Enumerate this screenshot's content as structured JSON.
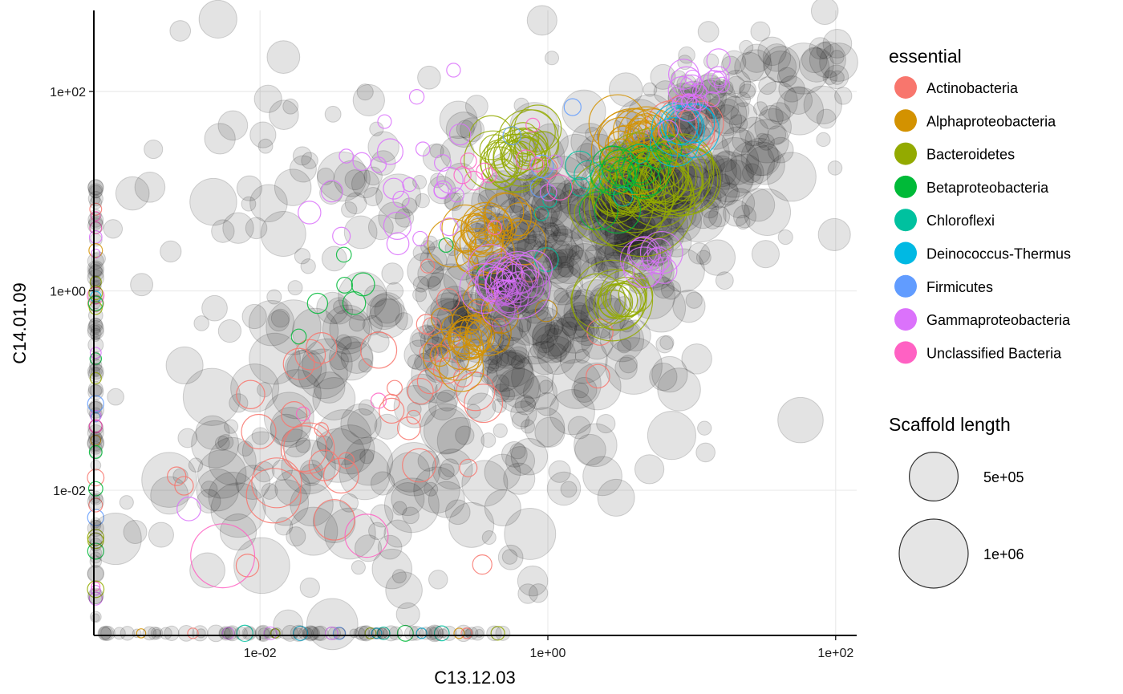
{
  "chart_data": {
    "type": "scatter",
    "x_label": "C13.12.03",
    "y_label": "C14.01.09",
    "x_scale": "log10",
    "y_scale": "log10",
    "x_range": [
      0.0007,
      140
    ],
    "y_range": [
      0.00035,
      650
    ],
    "x_ticks": [
      {
        "value": 0.01,
        "label": "1e-02"
      },
      {
        "value": 1,
        "label": "1e+00"
      },
      {
        "value": 100,
        "label": "1e+02"
      }
    ],
    "y_ticks": [
      {
        "value": 0.01,
        "label": "1e-02"
      },
      {
        "value": 1,
        "label": "1e+00"
      },
      {
        "value": 100,
        "label": "1e+02"
      }
    ],
    "grid": true,
    "unclassified_color": "#1a1a1a",
    "color_legend": {
      "title": "essential",
      "entries": [
        {
          "label": "Actinobacteria",
          "color": "#F8766D"
        },
        {
          "label": "Alphaproteobacteria",
          "color": "#D39200"
        },
        {
          "label": "Bacteroidetes",
          "color": "#93AA00"
        },
        {
          "label": "Betaproteobacteria",
          "color": "#00BA38"
        },
        {
          "label": "Chloroflexi",
          "color": "#00C19F"
        },
        {
          "label": "Deinococcus-Thermus",
          "color": "#00B9E3"
        },
        {
          "label": "Firmicutes",
          "color": "#619CFF"
        },
        {
          "label": "Gammaproteobacteria",
          "color": "#DB72FB"
        },
        {
          "label": "Unclassified Bacteria",
          "color": "#FF61C3"
        }
      ]
    },
    "size_legend": {
      "title": "Scaffold length",
      "entries": [
        {
          "label": "5e+05",
          "value": 500000
        },
        {
          "label": "1e+06",
          "value": 1000000
        }
      ]
    },
    "clusters": [
      {
        "group": "none",
        "x": 0.5,
        "y": 0.5,
        "spread": 1.2,
        "count": 160,
        "size": [
          1,
          14
        ]
      },
      {
        "group": "none",
        "x": 0.05,
        "y": 0.05,
        "spread": 0.9,
        "count": 120,
        "size": [
          1,
          18
        ]
      },
      {
        "group": "none",
        "x": 0.6,
        "y": 0.6,
        "spread": 0.5,
        "count": 120,
        "size": [
          1,
          12
        ]
      },
      {
        "group": "none",
        "x": 0.02,
        "y": 10,
        "spread": 0.9,
        "count": 70,
        "size": [
          1,
          8
        ]
      },
      {
        "group": "none",
        "x": 4,
        "y": 8,
        "spread": 0.4,
        "count": 150,
        "size": [
          2,
          16
        ]
      },
      {
        "group": "none",
        "x": 1.5,
        "y": 4,
        "spread": 0.6,
        "count": 90,
        "size": [
          1,
          14
        ]
      },
      {
        "group": "none",
        "x": 12,
        "y": 100,
        "spread": 0.25,
        "count": 45,
        "size": [
          1,
          8
        ]
      },
      {
        "group": "none",
        "x": 100,
        "y": 200,
        "spread": 0.35,
        "count": 35,
        "size": [
          1,
          10
        ]
      },
      {
        "group": "none",
        "x": 25,
        "y": 25,
        "spread": 0.3,
        "count": 30,
        "size": [
          1,
          10
        ]
      },
      {
        "group": "none",
        "x": 0.2,
        "y": 0.004,
        "spread": 0.8,
        "count": 40,
        "size": [
          1,
          16
        ]
      },
      {
        "group": "Actinobacteria",
        "x": 0.08,
        "y": 0.05,
        "spread": 0.6,
        "count": 30,
        "size": [
          1,
          18
        ]
      },
      {
        "group": "Actinobacteria",
        "x": 0.3,
        "y": 0.3,
        "spread": 0.6,
        "count": 15,
        "size": [
          1,
          6
        ]
      },
      {
        "group": "Actinobacteria",
        "x": 8,
        "y": 40,
        "spread": 0.1,
        "count": 4,
        "size": [
          10,
          20
        ]
      },
      {
        "group": "Alphaproteobacteria",
        "x": 0.4,
        "y": 3.5,
        "spread": 0.12,
        "count": 25,
        "size": [
          2,
          14
        ]
      },
      {
        "group": "Alphaproteobacteria",
        "x": 0.3,
        "y": 0.35,
        "spread": 0.15,
        "count": 25,
        "size": [
          2,
          12
        ]
      },
      {
        "group": "Alphaproteobacteria",
        "x": 4,
        "y": 35,
        "spread": 0.08,
        "count": 20,
        "size": [
          4,
          18
        ]
      },
      {
        "group": "Bacteroidetes",
        "x": 0.6,
        "y": 25,
        "spread": 0.1,
        "count": 25,
        "size": [
          4,
          20
        ]
      },
      {
        "group": "Bacteroidetes",
        "x": 5,
        "y": 12,
        "spread": 0.15,
        "count": 40,
        "size": [
          6,
          40
        ]
      },
      {
        "group": "Bacteroidetes",
        "x": 3,
        "y": 0.8,
        "spread": 0.06,
        "count": 12,
        "size": [
          6,
          20
        ]
      },
      {
        "group": "Betaproteobacteria",
        "x": 3,
        "y": 12,
        "spread": 0.15,
        "count": 15,
        "size": [
          3,
          14
        ]
      },
      {
        "group": "Betaproteobacteria",
        "x": 0.05,
        "y": 0.9,
        "spread": 0.3,
        "count": 8,
        "size": [
          1,
          3
        ]
      },
      {
        "group": "Chloroflexi",
        "x": 2,
        "y": 8,
        "spread": 0.3,
        "count": 8,
        "size": [
          1,
          5
        ]
      },
      {
        "group": "Deinococcus-Thermus",
        "x": 9,
        "y": 40,
        "spread": 0.05,
        "count": 6,
        "size": [
          8,
          18
        ]
      },
      {
        "group": "Firmicutes",
        "x": 1,
        "y": 20,
        "spread": 0.3,
        "count": 4,
        "size": [
          1,
          3
        ]
      },
      {
        "group": "Gammaproteobacteria",
        "x": 0.5,
        "y": 1.1,
        "spread": 0.1,
        "count": 25,
        "size": [
          3,
          14
        ]
      },
      {
        "group": "Gammaproteobacteria",
        "x": 0.1,
        "y": 15,
        "spread": 0.6,
        "count": 25,
        "size": [
          1,
          4
        ]
      },
      {
        "group": "Gammaproteobacteria",
        "x": 12,
        "y": 105,
        "spread": 0.15,
        "count": 20,
        "size": [
          1,
          5
        ]
      },
      {
        "group": "Gammaproteobacteria",
        "x": 5,
        "y": 2,
        "spread": 0.08,
        "count": 10,
        "size": [
          3,
          10
        ]
      },
      {
        "group": "Unclassified Bacteria",
        "x": 0.5,
        "y": 18,
        "spread": 0.2,
        "count": 10,
        "size": [
          1,
          4
        ]
      },
      {
        "group": "Unclassified Bacteria",
        "x": 0.02,
        "y": 0.06,
        "spread": 0.3,
        "count": 2,
        "size": [
          1,
          4
        ]
      }
    ],
    "points": [
      {
        "group": "Unclassified Bacteria",
        "x": 0.0055,
        "y": 0.0022,
        "size": 22
      },
      {
        "group": "Unclassified Bacteria",
        "x": 0.055,
        "y": 0.0035,
        "size": 10
      },
      {
        "group": "Gammaproteobacteria",
        "x": 0.0032,
        "y": 0.0065,
        "size": 3
      },
      {
        "group": "Gammaproteobacteria",
        "x": 0.09,
        "y": 4.5,
        "size": 4
      },
      {
        "group": "Actinobacteria",
        "x": 0.35,
        "y": 0.0018,
        "size": 2
      },
      {
        "group": "none",
        "x": 0.0013,
        "y": 9.5,
        "size": 6
      },
      {
        "group": "none",
        "x": 0.8,
        "y": 0.5,
        "size": 40
      },
      {
        "group": "none",
        "x": 30,
        "y": 400,
        "size": 2
      },
      {
        "group": "none",
        "x": 60,
        "y": 170,
        "size": 14
      },
      {
        "group": "Bacteroidetes",
        "x": 4.5,
        "y": 7.5,
        "size": 60
      },
      {
        "group": "Bacteroidetes",
        "x": 2.8,
        "y": 0.8,
        "size": 35
      },
      {
        "group": "Alphaproteobacteria",
        "x": 4,
        "y": 25,
        "size": 40
      },
      {
        "group": "Gammaproteobacteria",
        "x": 0.62,
        "y": 1.1,
        "size": 22
      }
    ],
    "axis_strips": [
      {
        "axis": "x",
        "from": 0.0008,
        "to": 0.5,
        "count": 90
      },
      {
        "axis": "y",
        "from": 0.0005,
        "to": 12,
        "count": 110
      }
    ]
  }
}
